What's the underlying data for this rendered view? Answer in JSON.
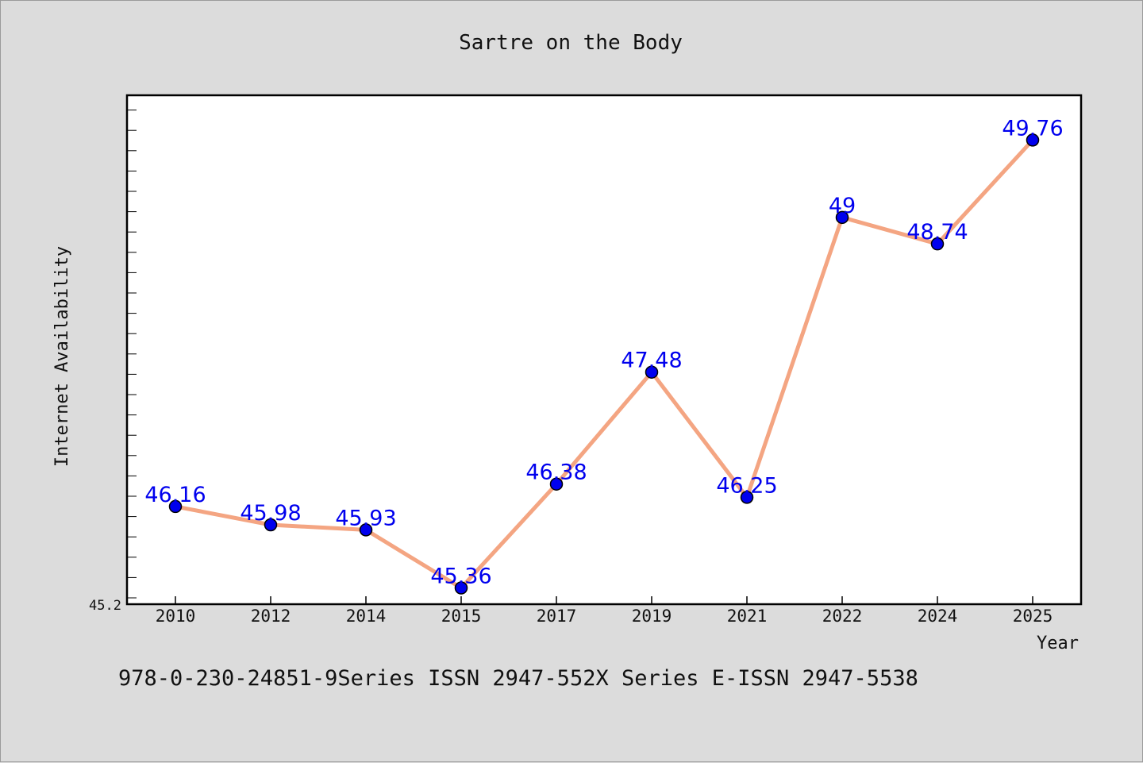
{
  "chart_data": {
    "type": "line",
    "title": "Sartre on the Body",
    "xlabel": "Year",
    "ylabel": "Internet Availability",
    "categories": [
      "2010",
      "2012",
      "2014",
      "2015",
      "2017",
      "2019",
      "2021",
      "2022",
      "2024",
      "2025"
    ],
    "series": [
      {
        "values": [
          46.16,
          45.98,
          45.93,
          45.36,
          46.38,
          47.48,
          46.25,
          49,
          48.74,
          49.76
        ]
      }
    ],
    "data_labels": [
      "46.16",
      "45.98",
      "45.93",
      "45.36",
      "46.38",
      "47.48",
      "46.25",
      "49",
      "48.74",
      "49.76]"
    ],
    "ylim": [
      45.2,
      50.2
    ],
    "y_min_label": "45.2",
    "grid": false,
    "legend": "none",
    "line_color": "#f4a582",
    "marker_color": "#0000ee",
    "label_color": "#0000ee"
  },
  "footer": {
    "text": "978-0-230-24851-9Series ISSN 2947-552X Series E-ISSN 2947-5538"
  }
}
